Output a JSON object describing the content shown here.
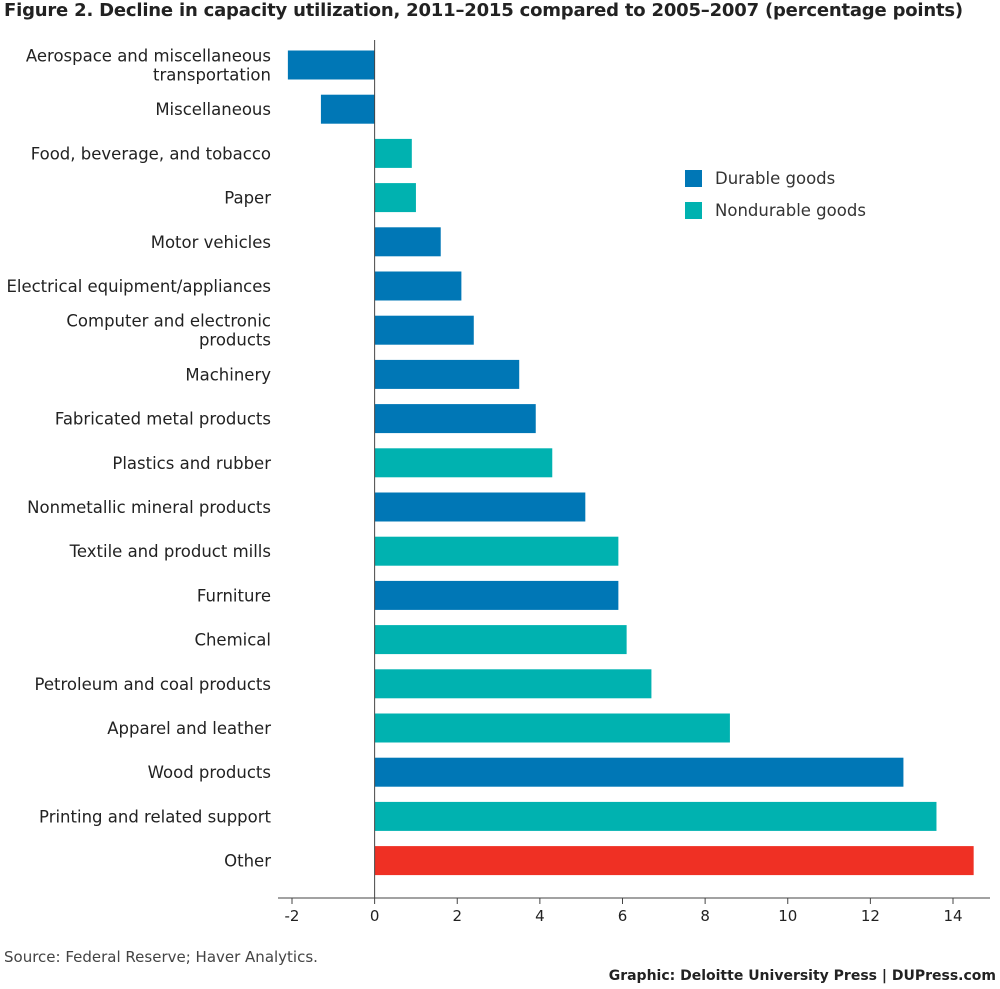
{
  "title": "Figure 2. Decline in capacity utilization, 2011–2015 compared to 2005–2007 (percentage points)",
  "source": "Source: Federal Reserve; Haver Analytics.",
  "credit": "Graphic: Deloitte University Press  |  DUPress.com",
  "colors": {
    "durable": "#0077b6",
    "nondurable": "#00b2b0",
    "other": "#ef3024"
  },
  "chart_data": {
    "type": "bar",
    "orientation": "horizontal",
    "xlim": [
      -2,
      15
    ],
    "ticks": [
      -2,
      0,
      2,
      4,
      6,
      8,
      10,
      12,
      14
    ],
    "tick_labels": [
      "-2",
      "0",
      "2",
      "4",
      "6",
      "8",
      "10",
      "12",
      "14"
    ],
    "legend": [
      {
        "label": "Durable goods",
        "group": "durable"
      },
      {
        "label": "Nondurable goods",
        "group": "nondurable"
      }
    ],
    "legend_position": "top-right",
    "bars": [
      {
        "label": [
          "Aerospace and miscellaneous",
          "transportation"
        ],
        "value": -2.1,
        "group": "durable"
      },
      {
        "label": [
          "Miscellaneous"
        ],
        "value": -1.3,
        "group": "durable"
      },
      {
        "label": [
          "Food, beverage, and tobacco"
        ],
        "value": 0.9,
        "group": "nondurable"
      },
      {
        "label": [
          "Paper"
        ],
        "value": 1.0,
        "group": "nondurable"
      },
      {
        "label": [
          "Motor vehicles"
        ],
        "value": 1.6,
        "group": "durable"
      },
      {
        "label": [
          "Electrical equipment/appliances"
        ],
        "value": 2.1,
        "group": "durable"
      },
      {
        "label": [
          "Computer and electronic",
          "products"
        ],
        "value": 2.4,
        "group": "durable"
      },
      {
        "label": [
          "Machinery"
        ],
        "value": 3.5,
        "group": "durable"
      },
      {
        "label": [
          "Fabricated metal products"
        ],
        "value": 3.9,
        "group": "durable"
      },
      {
        "label": [
          "Plastics and rubber"
        ],
        "value": 4.3,
        "group": "nondurable"
      },
      {
        "label": [
          "Nonmetallic mineral products"
        ],
        "value": 5.1,
        "group": "durable"
      },
      {
        "label": [
          "Textile and product mills"
        ],
        "value": 5.9,
        "group": "nondurable"
      },
      {
        "label": [
          "Furniture"
        ],
        "value": 5.9,
        "group": "durable"
      },
      {
        "label": [
          "Chemical"
        ],
        "value": 6.1,
        "group": "nondurable"
      },
      {
        "label": [
          "Petroleum and coal products"
        ],
        "value": 6.7,
        "group": "nondurable"
      },
      {
        "label": [
          "Apparel and leather"
        ],
        "value": 8.6,
        "group": "nondurable"
      },
      {
        "label": [
          "Wood products"
        ],
        "value": 12.8,
        "group": "durable"
      },
      {
        "label": [
          "Printing and related support"
        ],
        "value": 13.6,
        "group": "nondurable"
      },
      {
        "label": [
          "Other"
        ],
        "value": 14.5,
        "group": "other"
      }
    ]
  }
}
